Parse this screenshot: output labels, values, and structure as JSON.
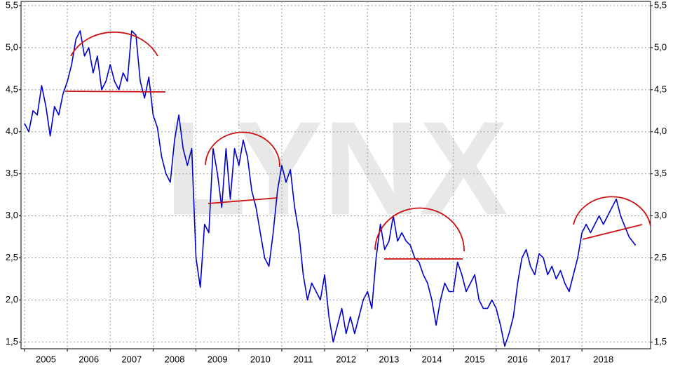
{
  "chart_data": {
    "type": "line",
    "watermark": "LYNX",
    "x": [
      2005.0,
      2005.1,
      2005.2,
      2005.3,
      2005.4,
      2005.5,
      2005.6,
      2005.7,
      2005.8,
      2005.9,
      2006.0,
      2006.1,
      2006.2,
      2006.3,
      2006.4,
      2006.5,
      2006.6,
      2006.7,
      2006.8,
      2006.9,
      2007.0,
      2007.1,
      2007.2,
      2007.3,
      2007.4,
      2007.5,
      2007.6,
      2007.7,
      2007.8,
      2007.9,
      2008.0,
      2008.1,
      2008.2,
      2008.3,
      2008.4,
      2008.5,
      2008.6,
      2008.7,
      2008.8,
      2008.9,
      2009.0,
      2009.1,
      2009.2,
      2009.3,
      2009.4,
      2009.5,
      2009.6,
      2009.7,
      2009.8,
      2009.9,
      2010.0,
      2010.1,
      2010.2,
      2010.3,
      2010.4,
      2010.5,
      2010.6,
      2010.7,
      2010.8,
      2010.9,
      2011.0,
      2011.1,
      2011.2,
      2011.3,
      2011.4,
      2011.5,
      2011.6,
      2011.7,
      2011.8,
      2011.9,
      2012.0,
      2012.1,
      2012.2,
      2012.3,
      2012.4,
      2012.5,
      2012.6,
      2012.7,
      2012.8,
      2012.9,
      2013.0,
      2013.1,
      2013.2,
      2013.3,
      2013.4,
      2013.5,
      2013.6,
      2013.7,
      2013.8,
      2013.9,
      2014.0,
      2014.1,
      2014.2,
      2014.3,
      2014.4,
      2014.5,
      2014.6,
      2014.7,
      2014.8,
      2014.9,
      2015.0,
      2015.1,
      2015.2,
      2015.3,
      2015.4,
      2015.5,
      2015.6,
      2015.7,
      2015.8,
      2015.9,
      2016.0,
      2016.1,
      2016.2,
      2016.3,
      2016.4,
      2016.5,
      2016.6,
      2016.7,
      2016.8,
      2016.9,
      2017.0,
      2017.1,
      2017.2,
      2017.3,
      2017.4,
      2017.5,
      2017.6,
      2017.7,
      2017.8,
      2017.9,
      2018.0,
      2018.1,
      2018.2,
      2018.3,
      2018.4,
      2018.5,
      2018.6,
      2018.7,
      2018.8,
      2018.9,
      2019.1,
      2019.25
    ],
    "series": [
      {
        "color": "#0000cc",
        "values": [
          4.1,
          4.0,
          4.25,
          4.2,
          4.55,
          4.3,
          3.95,
          4.3,
          4.2,
          4.45,
          4.6,
          4.8,
          5.1,
          5.2,
          4.9,
          5.0,
          4.7,
          4.9,
          4.5,
          4.6,
          4.8,
          4.6,
          4.5,
          4.7,
          4.6,
          5.2,
          5.15,
          4.6,
          4.4,
          4.65,
          4.2,
          4.05,
          3.7,
          3.5,
          3.4,
          3.9,
          4.2,
          3.8,
          3.6,
          3.8,
          2.5,
          2.15,
          2.9,
          2.8,
          3.8,
          3.5,
          3.1,
          3.8,
          3.2,
          3.8,
          3.6,
          3.9,
          3.7,
          3.3,
          3.1,
          2.8,
          2.5,
          2.4,
          2.8,
          3.3,
          3.6,
          3.4,
          3.55,
          3.1,
          2.8,
          2.3,
          2.0,
          2.2,
          2.1,
          2.0,
          2.3,
          1.8,
          1.5,
          1.7,
          1.9,
          1.6,
          1.8,
          1.6,
          1.8,
          2.0,
          2.1,
          1.9,
          2.5,
          2.9,
          2.6,
          2.7,
          3.0,
          2.7,
          2.8,
          2.7,
          2.65,
          2.5,
          2.45,
          2.3,
          2.2,
          2.0,
          1.7,
          2.0,
          2.2,
          2.1,
          2.1,
          2.45,
          2.3,
          2.1,
          2.2,
          2.3,
          2.0,
          1.9,
          1.9,
          2.0,
          1.9,
          1.7,
          1.45,
          1.6,
          1.8,
          2.2,
          2.5,
          2.6,
          2.4,
          2.3,
          2.55,
          2.5,
          2.3,
          2.4,
          2.25,
          2.35,
          2.2,
          2.1,
          2.3,
          2.5,
          2.8,
          2.9,
          2.8,
          2.9,
          3.0,
          2.9,
          3.0,
          3.1,
          3.2,
          3.0,
          2.75,
          2.65
        ]
      }
    ],
    "xlim": [
      2004.92,
      2019.6
    ],
    "xticks": [
      2005,
      2006,
      2007,
      2008,
      2009,
      2010,
      2011,
      2012,
      2013,
      2014,
      2015,
      2016,
      2017,
      2018
    ],
    "ylim": [
      1.42,
      5.55
    ],
    "yticks": [
      {
        "value": 1.5,
        "label": "1,5"
      },
      {
        "value": 2.0,
        "label": "2,0"
      },
      {
        "value": 2.5,
        "label": "2,5"
      },
      {
        "value": 3.0,
        "label": "3,0"
      },
      {
        "value": 3.5,
        "label": "3,5"
      },
      {
        "value": 4.0,
        "label": "4,0"
      },
      {
        "value": 4.5,
        "label": "4,5"
      },
      {
        "value": 5.0,
        "label": "5,0"
      },
      {
        "value": 5.5,
        "label": "5,5"
      }
    ],
    "grid": true
  }
}
